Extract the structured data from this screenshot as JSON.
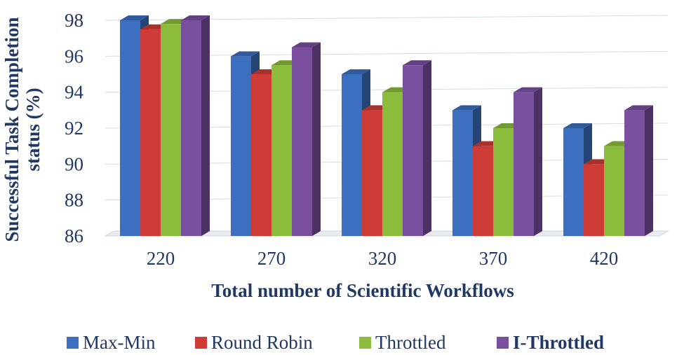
{
  "chart_data": {
    "type": "bar",
    "style": "3d-clustered-column",
    "categories": [
      "220",
      "270",
      "320",
      "370",
      "420"
    ],
    "series": [
      {
        "name": "Max-Min",
        "color": "#3d6fc0",
        "values": [
          98,
          96,
          95,
          93,
          92
        ]
      },
      {
        "name": "Round Robin",
        "color": "#cf3b36",
        "values": [
          97.5,
          95,
          93,
          91,
          90
        ]
      },
      {
        "name": "Throttled",
        "color": "#8cbc3c",
        "values": [
          97.8,
          95.5,
          94,
          92,
          91
        ]
      },
      {
        "name": "I-Throttled",
        "color": "#7a4f9f",
        "values": [
          98,
          96.5,
          95.5,
          94,
          93
        ]
      }
    ],
    "xlabel": "Total number of Scientific Workflows",
    "ylabel_lines": [
      "Successful Task Completion",
      "status (%)"
    ],
    "ylim": [
      86,
      98
    ],
    "yticks": [
      "86",
      "88",
      "90",
      "92",
      "94",
      "96",
      "98"
    ],
    "grid": true,
    "legend_position": "bottom",
    "legend_bold": [
      "I-Throttled"
    ]
  }
}
